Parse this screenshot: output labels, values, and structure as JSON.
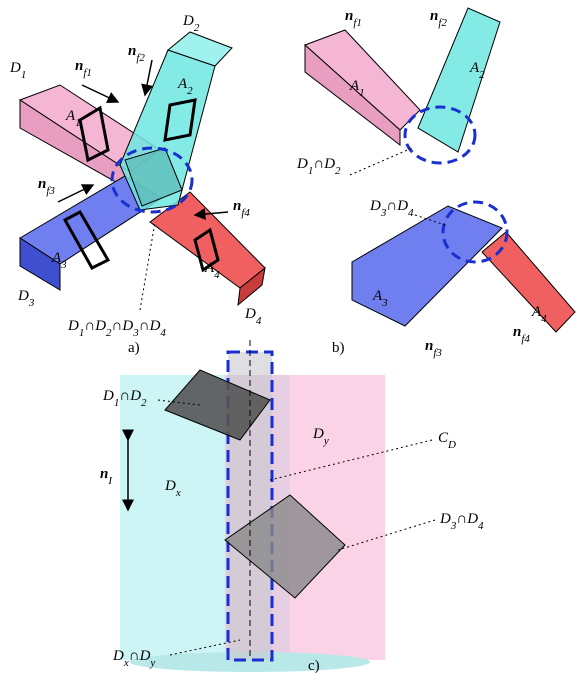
{
  "captions": [
    "a)",
    "b)",
    "c)"
  ],
  "labels": [
    {
      "parts": [
        {
          "t": "D",
          "sub": "1"
        }
      ]
    },
    {
      "parts": [
        {
          "t": "D",
          "sub": "2"
        }
      ]
    },
    {
      "parts": [
        {
          "t": "n",
          "sub": "f1"
        }
      ]
    },
    {
      "parts": [
        {
          "t": "n",
          "sub": "f2"
        }
      ]
    },
    {
      "parts": [
        {
          "t": "A",
          "sub": "2"
        }
      ]
    },
    {
      "parts": [
        {
          "t": "A",
          "sub": "1"
        }
      ]
    },
    {
      "parts": [
        {
          "t": "n",
          "sub": "f3"
        }
      ]
    },
    {
      "parts": [
        {
          "t": "n",
          "sub": "f4"
        }
      ]
    },
    {
      "parts": [
        {
          "t": "A",
          "sub": "3"
        }
      ]
    },
    {
      "parts": [
        {
          "t": "A",
          "sub": "4"
        }
      ]
    },
    {
      "parts": [
        {
          "t": "D",
          "sub": "3"
        }
      ]
    },
    {
      "parts": [
        {
          "t": "D",
          "sub": "4"
        }
      ]
    },
    {
      "parts": [
        {
          "t": "D",
          "sub": "1"
        },
        {
          "t": "∩"
        },
        {
          "t": "D",
          "sub": "2"
        },
        {
          "t": "∩"
        },
        {
          "t": "D",
          "sub": "3"
        },
        {
          "t": "∩"
        },
        {
          "t": "D",
          "sub": "4"
        }
      ]
    },
    {
      "parts": [
        {
          "t": "n",
          "sub": "f1"
        }
      ]
    },
    {
      "parts": [
        {
          "t": "n",
          "sub": "f2"
        }
      ]
    },
    {
      "parts": [
        {
          "t": "A",
          "sub": "2"
        }
      ]
    },
    {
      "parts": [
        {
          "t": "A",
          "sub": "1"
        }
      ]
    },
    {
      "parts": [
        {
          "t": "D",
          "sub": "1"
        },
        {
          "t": "∩"
        },
        {
          "t": "D",
          "sub": "2"
        }
      ]
    },
    {
      "parts": [
        {
          "t": "D",
          "sub": "3"
        },
        {
          "t": "∩"
        },
        {
          "t": "D",
          "sub": "4"
        }
      ]
    },
    {
      "parts": [
        {
          "t": "A",
          "sub": "3"
        }
      ]
    },
    {
      "parts": [
        {
          "t": "A",
          "sub": "4"
        }
      ]
    },
    {
      "parts": [
        {
          "t": "n",
          "sub": "f3"
        }
      ]
    },
    {
      "parts": [
        {
          "t": "n",
          "sub": "f4"
        }
      ]
    },
    {
      "parts": [
        {
          "t": "D",
          "sub": "1"
        },
        {
          "t": "∩"
        },
        {
          "t": "D",
          "sub": "2"
        }
      ]
    },
    {
      "parts": [
        {
          "t": "D",
          "sub": "y"
        }
      ]
    },
    {
      "parts": [
        {
          "t": "C",
          "sub": "D"
        }
      ]
    },
    {
      "parts": [
        {
          "t": "n",
          "sub": "I"
        }
      ]
    },
    {
      "parts": [
        {
          "t": "D",
          "sub": "x"
        }
      ]
    },
    {
      "parts": [
        {
          "t": "D",
          "sub": "3"
        },
        {
          "t": "∩"
        },
        {
          "t": "D",
          "sub": "4"
        }
      ]
    },
    {
      "parts": [
        {
          "t": "D",
          "sub": "x"
        },
        {
          "t": "∩"
        },
        {
          "t": "D",
          "sub": "y"
        }
      ]
    }
  ]
}
